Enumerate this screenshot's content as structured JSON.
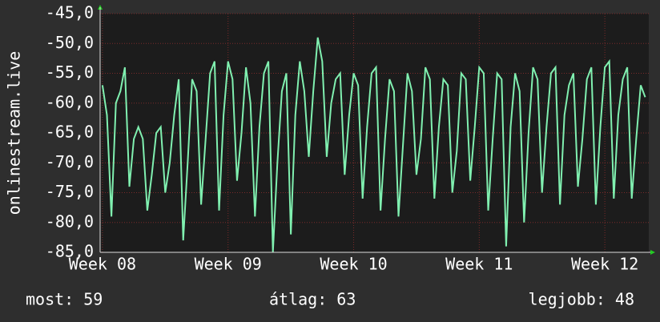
{
  "chart_data": {
    "type": "line",
    "y_label": "onlinestream.live",
    "x": [
      0,
      0.25,
      0.5,
      0.75,
      1,
      1.25,
      1.5,
      1.75,
      2,
      2.25,
      2.5,
      2.75,
      3,
      3.25,
      3.5,
      3.75,
      4,
      4.25,
      4.5,
      4.75,
      5,
      5.25,
      5.5,
      5.75,
      6,
      6.25,
      6.5,
      6.75,
      7,
      7.25,
      7.5,
      7.75,
      8,
      8.25,
      8.5,
      8.75,
      9,
      9.25,
      9.5,
      9.75,
      10,
      10.25,
      10.5,
      10.75,
      11,
      11.25,
      11.5,
      11.75,
      12,
      12.25,
      12.5,
      12.75,
      13,
      13.25,
      13.5,
      13.75,
      14,
      14.25,
      14.5,
      14.75,
      15,
      15.25,
      15.5,
      15.75,
      16,
      16.25,
      16.5,
      16.75,
      17,
      17.25,
      17.5,
      17.75,
      18,
      18.25,
      18.5,
      18.75,
      19,
      19.25,
      19.5,
      19.75,
      20,
      20.25,
      20.5,
      20.75,
      21,
      21.25,
      21.5,
      21.75,
      22,
      22.25,
      22.5,
      22.75,
      23,
      23.25,
      23.5,
      23.75,
      24,
      24.25,
      24.5,
      24.75,
      25,
      25.25,
      25.5,
      25.75,
      26,
      26.25,
      26.5,
      26.75,
      27,
      27.25,
      27.5,
      27.75,
      28,
      28.25,
      28.5,
      28.75,
      29,
      29.25,
      29.5,
      29.75,
      30,
      30.25
    ],
    "series": [
      {
        "color": "#80f0b0",
        "values": [
          -57,
          -62,
          -79,
          -60,
          -58,
          -54,
          -74,
          -66,
          -64,
          -66,
          -78,
          -72,
          -65,
          -64,
          -75,
          -70,
          -62,
          -56,
          -83,
          -70,
          -56,
          -58,
          -77,
          -66,
          -55,
          -53,
          -78,
          -62,
          -53,
          -56,
          -73,
          -65,
          -54,
          -60,
          -79,
          -64,
          -55,
          -53,
          -85,
          -70,
          -58,
          -55,
          -82,
          -62,
          -53,
          -58,
          -69,
          -58,
          -49,
          -53,
          -69,
          -60,
          -56,
          -55,
          -72,
          -62,
          -55,
          -57,
          -76,
          -64,
          -55,
          -54,
          -78,
          -66,
          -56,
          -58,
          -79,
          -67,
          -55,
          -58,
          -72,
          -66,
          -54,
          -56,
          -76,
          -64,
          -56,
          -57,
          -75,
          -68,
          -55,
          -56,
          -73,
          -64,
          -54,
          -55,
          -78,
          -66,
          -55,
          -56,
          -84,
          -64,
          -55,
          -58,
          -80,
          -65,
          -54,
          -56,
          -75,
          -64,
          -55,
          -54,
          -77,
          -62,
          -57,
          -55,
          -74,
          -66,
          -56,
          -54,
          -77,
          -64,
          -54,
          -53,
          -76,
          -62,
          -56,
          -54,
          -76,
          -66,
          -57,
          -59
        ]
      }
    ],
    "xlim": [
      -0.13,
      30.45
    ],
    "xticks": [
      {
        "value": 0,
        "label": "Week 08"
      },
      {
        "value": 7,
        "label": "Week 09"
      },
      {
        "value": 14,
        "label": "Week 10"
      },
      {
        "value": 21,
        "label": "Week 11"
      },
      {
        "value": 28,
        "label": "Week 12"
      }
    ],
    "ylim": [
      -85,
      -45
    ],
    "yticks": [
      {
        "value": -45,
        "label": "-45,0"
      },
      {
        "value": -50,
        "label": "-50,0"
      },
      {
        "value": -55,
        "label": "-55,0"
      },
      {
        "value": -60,
        "label": "-60,0"
      },
      {
        "value": -65,
        "label": "-65,0"
      },
      {
        "value": -70,
        "label": "-70,0"
      },
      {
        "value": -75,
        "label": "-75,0"
      },
      {
        "value": -80,
        "label": "-80,0"
      },
      {
        "value": -85,
        "label": "-85,0"
      }
    ],
    "grid": true
  },
  "footer": {
    "current": "most: 59",
    "average": "átlag: 63",
    "best": "legjobb: 48"
  }
}
